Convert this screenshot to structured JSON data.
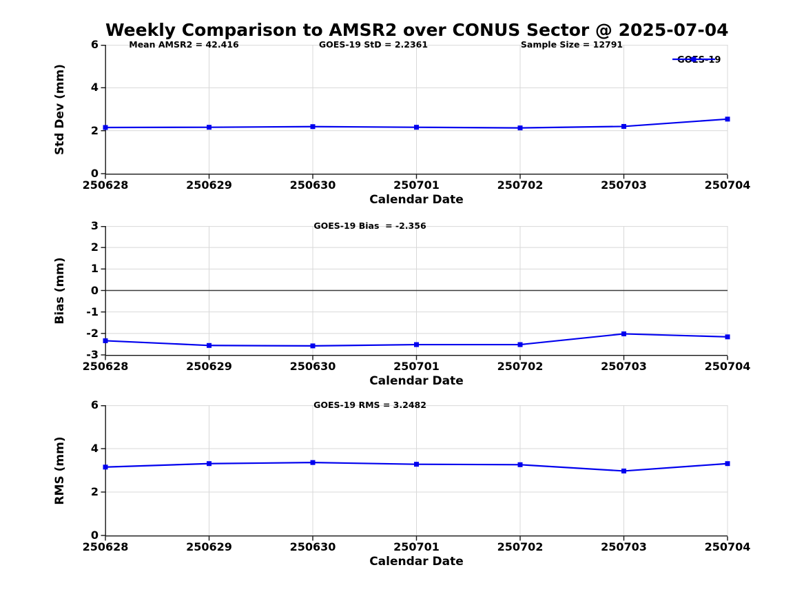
{
  "figure": {
    "title": "Weekly Comparison to AMSR2 over CONUS Sector @ 2025-07-04",
    "background": "#ffffff",
    "text_color": "#000000"
  },
  "colors": {
    "series_blue": "#0000EE",
    "grid_gray": "#d8d8d8",
    "zero_line_gray": "#3a3a3a",
    "axis_black": "#141414"
  },
  "chart_data": [
    {
      "id": "stddev",
      "type": "line",
      "annotations": [
        "Mean AMSR2 = 42.416",
        "GOES-19 StD = 2.2361",
        "Sample Size = 12791"
      ],
      "ylabel": "Std Dev (mm)",
      "xlabel": "Calendar Date",
      "x_categories": [
        "250628",
        "250629",
        "250630",
        "250701",
        "250702",
        "250703",
        "250704"
      ],
      "ylim": [
        0,
        6
      ],
      "yticks": [
        0,
        2,
        4,
        6
      ],
      "grid": true,
      "zero_line": false,
      "legend": {
        "label": "GOES-19",
        "position": "top-right"
      },
      "series": [
        {
          "name": "GOES-19",
          "color": "#0000EE",
          "marker": "square",
          "values": [
            2.15,
            2.16,
            2.19,
            2.16,
            2.13,
            2.2,
            2.54
          ]
        }
      ]
    },
    {
      "id": "bias",
      "type": "line",
      "annotations": [
        "GOES-19 Bias  = -2.356"
      ],
      "ylabel": "Bias (mm)",
      "xlabel": "Calendar Date",
      "x_categories": [
        "250628",
        "250629",
        "250630",
        "250701",
        "250702",
        "250703",
        "250704"
      ],
      "ylim": [
        -3,
        3
      ],
      "yticks": [
        3,
        2,
        1,
        0,
        -1,
        -2,
        -3
      ],
      "grid": true,
      "zero_line": true,
      "series": [
        {
          "name": "GOES-19",
          "color": "#0000EE",
          "marker": "square",
          "values": [
            -2.34,
            -2.56,
            -2.58,
            -2.52,
            -2.52,
            -2.02,
            -2.16
          ]
        }
      ]
    },
    {
      "id": "rms",
      "type": "line",
      "annotations": [
        "GOES-19 RMS = 3.2482"
      ],
      "ylabel": "RMS (mm)",
      "xlabel": "Calendar Date",
      "x_categories": [
        "250628",
        "250629",
        "250630",
        "250701",
        "250702",
        "250703",
        "250704"
      ],
      "ylim": [
        0,
        6
      ],
      "yticks": [
        0,
        2,
        4,
        6
      ],
      "grid": true,
      "zero_line": false,
      "series": [
        {
          "name": "GOES-19",
          "color": "#0000EE",
          "marker": "square",
          "values": [
            3.15,
            3.31,
            3.36,
            3.28,
            3.26,
            2.97,
            3.31
          ]
        }
      ]
    }
  ]
}
